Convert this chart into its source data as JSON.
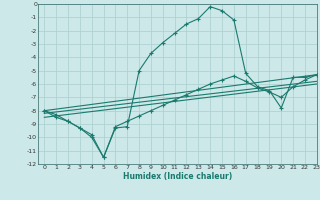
{
  "xlabel": "Humidex (Indice chaleur)",
  "ylabel": "",
  "xlim": [
    -0.5,
    23
  ],
  "ylim": [
    -12,
    0
  ],
  "xticks": [
    0,
    1,
    2,
    3,
    4,
    5,
    6,
    7,
    8,
    9,
    10,
    11,
    12,
    13,
    14,
    15,
    16,
    17,
    18,
    19,
    20,
    21,
    22,
    23
  ],
  "yticks": [
    0,
    -1,
    -2,
    -3,
    -4,
    -5,
    -6,
    -7,
    -8,
    -9,
    -10,
    -11,
    -12
  ],
  "bg_color": "#cce8e8",
  "line_color": "#1a7a6e",
  "grid_color": "#aacece",
  "line1_x": [
    0,
    1,
    2,
    3,
    4,
    5,
    6,
    7,
    8,
    9,
    10,
    11,
    12,
    13,
    14,
    15,
    16,
    17,
    18,
    19,
    20,
    21,
    22,
    23
  ],
  "line1_y": [
    -8.0,
    -8.3,
    -8.8,
    -9.3,
    -10.0,
    -11.5,
    -9.3,
    -9.2,
    -5.0,
    -3.7,
    -2.9,
    -2.2,
    -1.5,
    -1.1,
    -0.2,
    -0.5,
    -1.2,
    -5.2,
    -6.2,
    -6.5,
    -7.8,
    -5.5,
    -5.5,
    -5.3
  ],
  "line2_x": [
    0,
    1,
    2,
    3,
    4,
    5,
    6,
    7,
    8,
    9,
    10,
    11,
    12,
    13,
    14,
    15,
    16,
    17,
    18,
    19,
    20,
    21,
    22,
    23
  ],
  "line2_y": [
    -8.0,
    -8.5,
    -8.8,
    -9.3,
    -9.8,
    -11.5,
    -9.2,
    -8.8,
    -8.4,
    -8.0,
    -7.6,
    -7.2,
    -6.8,
    -6.4,
    -6.0,
    -5.7,
    -5.4,
    -5.8,
    -6.3,
    -6.6,
    -7.0,
    -6.2,
    -5.7,
    -5.3
  ],
  "line3_x": [
    0,
    23
  ],
  "line3_y": [
    -8.0,
    -5.3
  ],
  "line4_x": [
    0,
    23
  ],
  "line4_y": [
    -8.2,
    -5.8
  ],
  "line5_x": [
    0,
    23
  ],
  "line5_y": [
    -8.5,
    -6.0
  ]
}
